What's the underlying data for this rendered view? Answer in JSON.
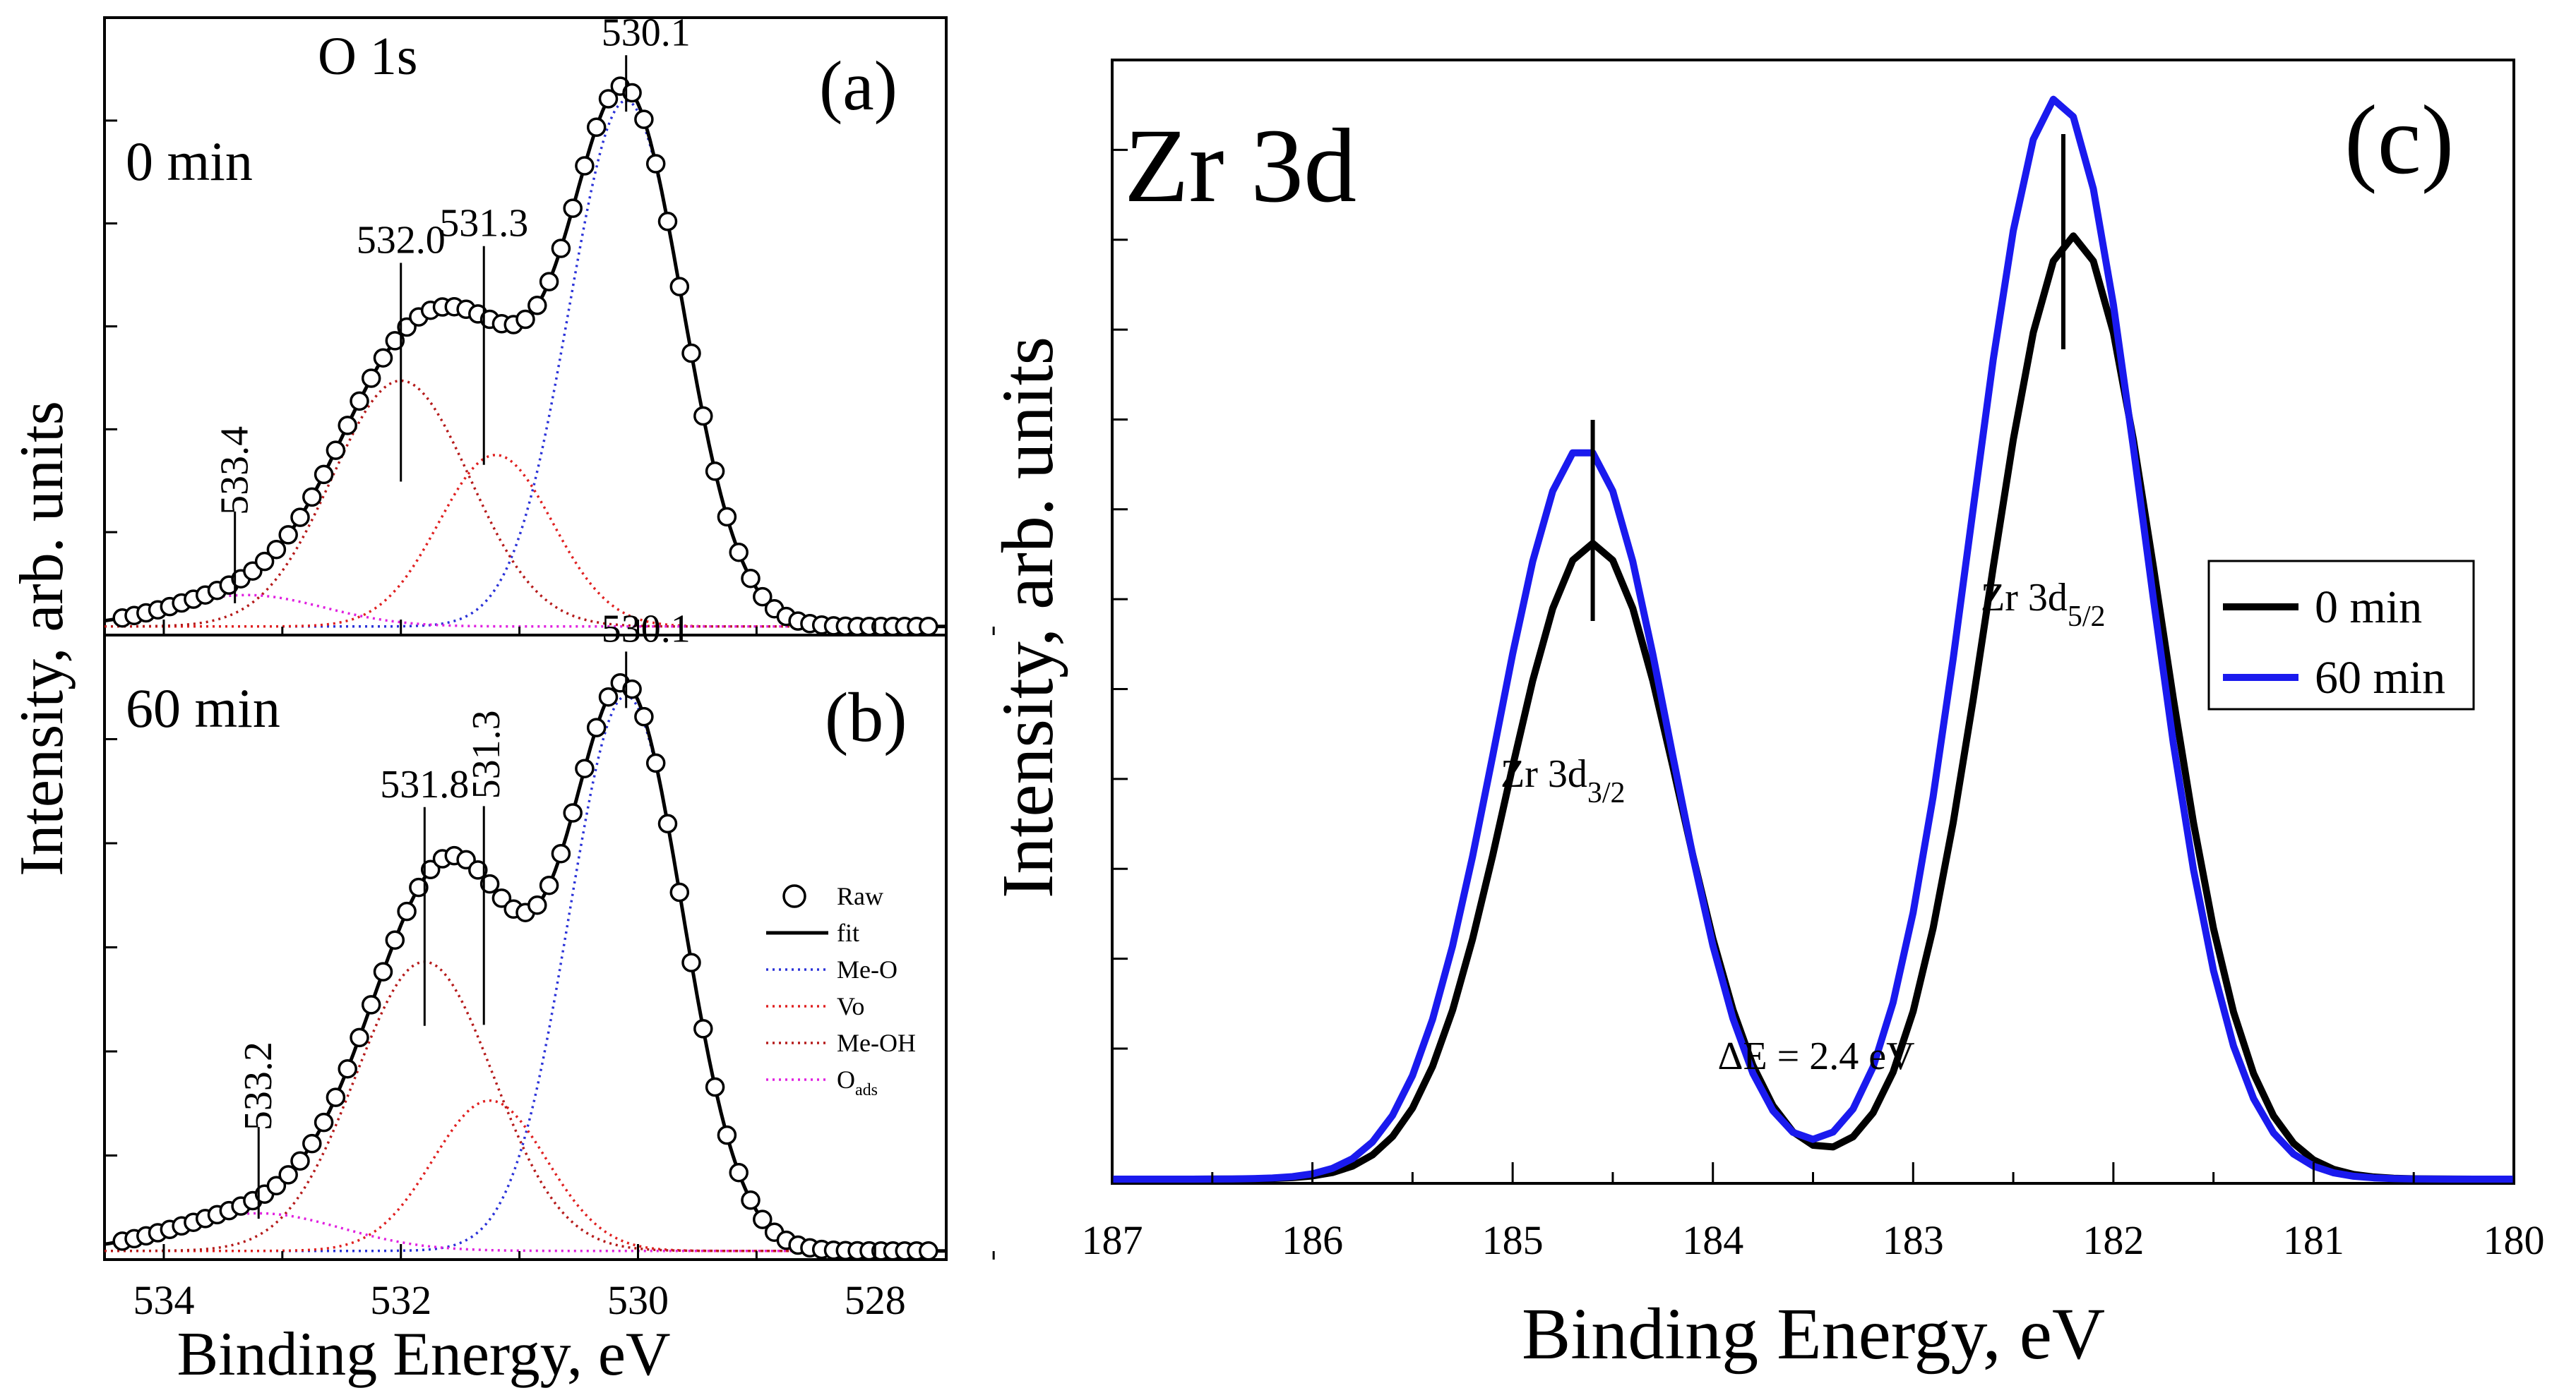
{
  "chart_data": [
    {
      "panel_label": "(a)",
      "type": "scatter",
      "title": "O 1s",
      "subtitle": "0 min",
      "xlabel": "Binding Energy, eV",
      "ylabel": "Intensity, arb. units",
      "xlim": [
        534.5,
        527.4
      ],
      "x_reversed": true,
      "ylim": [
        0,
        1.08
      ],
      "xticks": [
        534,
        532,
        530,
        528
      ],
      "peak_labels": [
        {
          "text": "530.1",
          "x": 530.1
        },
        {
          "text": "532.0",
          "x": 532.0
        },
        {
          "text": "531.3",
          "x": 531.3
        },
        {
          "text": "533.4",
          "x": 533.4
        }
      ],
      "components": [
        {
          "name": "Me-O",
          "center": 530.1,
          "height": 0.92,
          "width": 0.48,
          "color": "#2a32d8"
        },
        {
          "name": "Vo",
          "center": 531.2,
          "height": 0.3,
          "width": 0.48,
          "color": "#e02020"
        },
        {
          "name": "Me-OH",
          "center": 532.0,
          "height": 0.43,
          "width": 0.58,
          "color": "#b51a1a"
        },
        {
          "name": "O_ads",
          "center": 533.3,
          "height": 0.055,
          "width": 0.65,
          "color": "#e020e0"
        }
      ],
      "baseline": 0.015
    },
    {
      "panel_label": "(b)",
      "type": "scatter",
      "subtitle": "60 min",
      "xlabel": "Binding Energy, eV",
      "xlim": [
        534.5,
        527.4
      ],
      "x_reversed": true,
      "ylim": [
        0,
        1.08
      ],
      "xticks": [
        534,
        532,
        530,
        528
      ],
      "peak_labels": [
        {
          "text": "530.1",
          "x": 530.1
        },
        {
          "text": "531.8",
          "x": 531.8
        },
        {
          "text": "531.3",
          "x": 531.3
        },
        {
          "text": "533.2",
          "x": 533.2
        }
      ],
      "legend": {
        "placement": "right",
        "entries": [
          {
            "label": "Raw",
            "style": "circle"
          },
          {
            "label": "fit",
            "style": "line",
            "color": "#000000"
          },
          {
            "label": "Me-O",
            "style": "dotted",
            "color": "#2a32d8"
          },
          {
            "label": "Vo",
            "style": "dotted",
            "color": "#e02020"
          },
          {
            "label": "Me-OH",
            "style": "dotted",
            "color": "#b51a1a"
          },
          {
            "label": "O",
            "sub": "ads",
            "style": "dotted",
            "color": "#e020e0"
          }
        ]
      },
      "components": [
        {
          "name": "Me-O",
          "center": 530.1,
          "height": 0.96,
          "width": 0.48,
          "color": "#2a32d8"
        },
        {
          "name": "Vo",
          "center": 531.25,
          "height": 0.26,
          "width": 0.48,
          "color": "#e02020"
        },
        {
          "name": "Me-OH",
          "center": 531.8,
          "height": 0.5,
          "width": 0.58,
          "color": "#b51a1a"
        },
        {
          "name": "O_ads",
          "center": 533.2,
          "height": 0.065,
          "width": 0.7,
          "color": "#e020e0"
        }
      ],
      "baseline": 0.015
    },
    {
      "panel_label": "(c)",
      "type": "line",
      "title": "Zr 3d",
      "xlabel": "Binding Energy, eV",
      "ylabel": "Intensity, arb. units",
      "xlim": [
        187,
        180
      ],
      "x_reversed": true,
      "ylim": [
        0,
        1.06
      ],
      "xticks": [
        187,
        186,
        185,
        184,
        183,
        182,
        181,
        180
      ],
      "xtick_labels": [
        "187",
        "186",
        "185",
        "184",
        "183",
        "182",
        "181",
        "180"
      ],
      "legend": {
        "placement": "right"
      },
      "peak_markers": [
        184.6,
        182.25
      ],
      "annotations": [
        {
          "text": "Zr 3d",
          "sub": "3/2"
        },
        {
          "text": "Zr 3d",
          "sub": "5/2"
        },
        {
          "text": "ΔE = 2.4 eV"
        }
      ],
      "series": [
        {
          "name": "0 min",
          "color": "#000000",
          "peaks": [
            {
              "center": 182.2,
              "height": 0.89,
              "width": 0.43
            },
            {
              "center": 184.6,
              "height": 0.6,
              "width": 0.43
            }
          ]
        },
        {
          "name": "60 min",
          "color": "#1a1aee",
          "peaks": [
            {
              "center": 182.28,
              "height": 1.02,
              "width": 0.43
            },
            {
              "center": 184.65,
              "height": 0.69,
              "width": 0.43
            }
          ]
        }
      ],
      "baseline": 0.004
    }
  ]
}
